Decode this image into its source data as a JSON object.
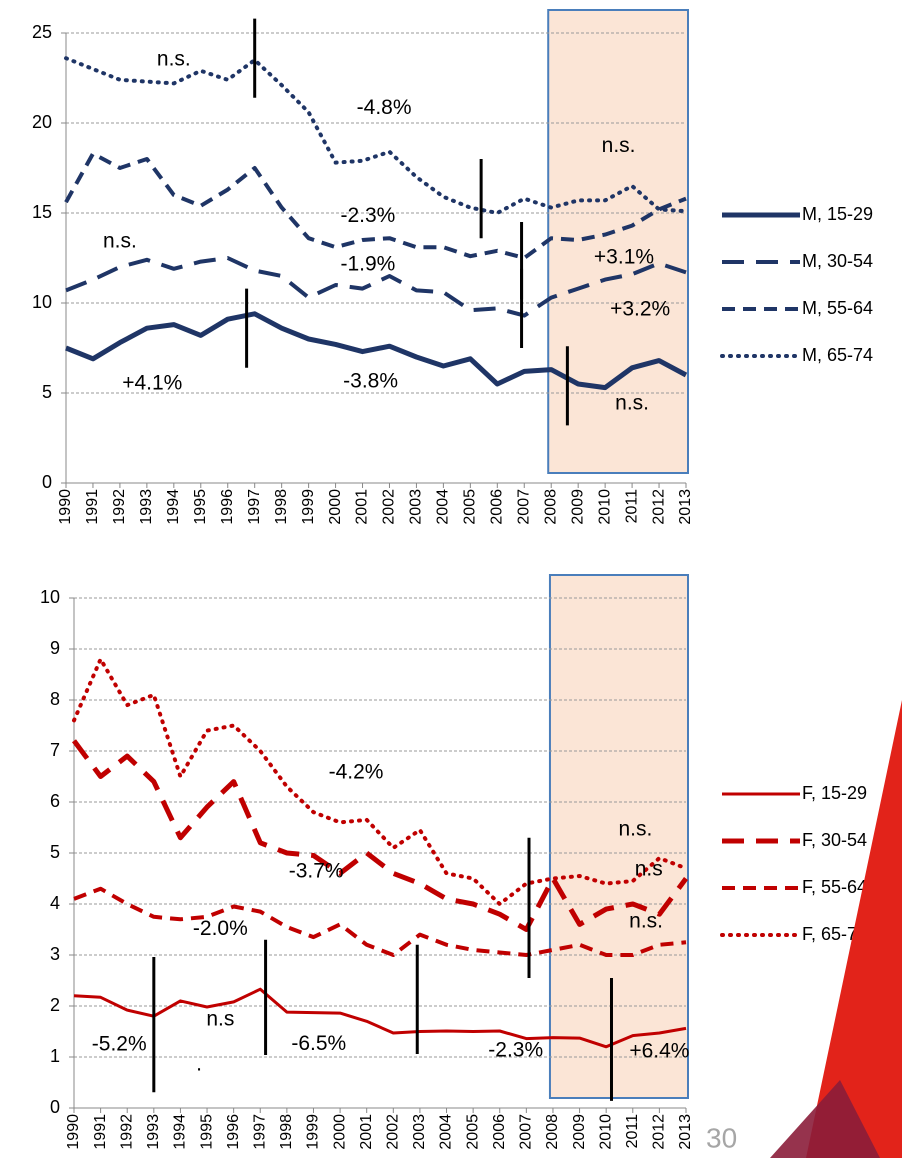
{
  "chart_data": [
    {
      "type": "line",
      "x": [
        1990,
        1991,
        1992,
        1993,
        1994,
        1995,
        1996,
        1997,
        1998,
        1999,
        2000,
        2001,
        2002,
        2003,
        2004,
        2005,
        2006,
        2007,
        2008,
        2009,
        2010,
        2011,
        2012,
        2013
      ],
      "xlim": [
        1990,
        2013
      ],
      "ylim": [
        0,
        25
      ],
      "yticks": [
        0,
        5,
        10,
        15,
        20,
        25
      ],
      "grid": true,
      "highlight": [
        2008,
        2013
      ],
      "series": [
        {
          "name": "M, 15-29",
          "color": "#1f3566",
          "dash": "solid",
          "width": 5,
          "values": [
            7.5,
            6.9,
            7.8,
            8.6,
            8.8,
            8.2,
            9.1,
            9.4,
            8.6,
            8.0,
            7.7,
            7.3,
            7.6,
            7.0,
            6.5,
            6.9,
            5.5,
            6.2,
            6.3,
            5.5,
            5.3,
            6.4,
            6.8,
            6.0
          ]
        },
        {
          "name": "M, 30-54",
          "color": "#1f3566",
          "dash": "long-dash",
          "width": 4,
          "values": [
            10.7,
            11.3,
            12.0,
            12.4,
            11.9,
            12.3,
            12.5,
            11.8,
            11.5,
            10.3,
            11.0,
            10.8,
            11.5,
            10.7,
            10.6,
            9.6,
            9.7,
            9.3,
            10.3,
            10.8,
            11.3,
            11.6,
            12.2,
            11.7
          ]
        },
        {
          "name": "M, 55-64",
          "color": "#1f3566",
          "dash": "dash",
          "width": 4,
          "values": [
            15.6,
            18.3,
            17.5,
            18.0,
            16.0,
            15.4,
            16.3,
            17.5,
            15.3,
            13.6,
            13.1,
            13.5,
            13.6,
            13.1,
            13.1,
            12.6,
            12.9,
            12.5,
            13.6,
            13.5,
            13.8,
            14.3,
            15.2,
            15.8
          ]
        },
        {
          "name": "M, 65-74",
          "color": "#1f3566",
          "dash": "dot",
          "width": 4,
          "values": [
            23.6,
            23.0,
            22.4,
            22.3,
            22.2,
            22.9,
            22.4,
            23.5,
            22.1,
            20.6,
            17.8,
            17.9,
            18.4,
            17.0,
            15.9,
            15.3,
            15.0,
            15.8,
            15.3,
            15.7,
            15.7,
            16.5,
            15.2,
            15.1
          ]
        }
      ],
      "breakpoints": [
        {
          "x": 1997.0,
          "y": [
            25.8,
            21.4
          ]
        },
        {
          "x": 2005.4,
          "y": [
            18.0,
            13.6
          ]
        },
        {
          "x": 2006.9,
          "y": [
            14.5,
            10.2
          ]
        },
        {
          "x": 2006.9,
          "y": [
            11.9,
            7.5
          ]
        },
        {
          "x": 1996.7,
          "y": [
            10.8,
            6.4
          ]
        },
        {
          "x": 2008.6,
          "y": [
            7.6,
            3.2
          ]
        }
      ],
      "annotations": [
        {
          "text": "n.s.",
          "x": 1994.0,
          "y": 23.5
        },
        {
          "text": "-4.8%",
          "x": 2001.8,
          "y": 20.8
        },
        {
          "text": "n.s.",
          "x": 2010.5,
          "y": 18.7
        },
        {
          "text": "-2.3%",
          "x": 2001.2,
          "y": 14.8
        },
        {
          "text": "n.s.",
          "x": 1992.0,
          "y": 13.4
        },
        {
          "text": "+3.1%",
          "x": 2010.7,
          "y": 12.5
        },
        {
          "text": "-1.9%",
          "x": 2001.2,
          "y": 12.1
        },
        {
          "text": "+3.2%",
          "x": 2011.3,
          "y": 9.6
        },
        {
          "text": "+4.1%",
          "x": 1993.2,
          "y": 5.5
        },
        {
          "text": "-3.8%",
          "x": 2001.3,
          "y": 5.6
        },
        {
          "text": "n.s.",
          "x": 2011.0,
          "y": 4.4
        }
      ]
    },
    {
      "type": "line",
      "x": [
        1990,
        1991,
        1992,
        1993,
        1994,
        1995,
        1996,
        1997,
        1998,
        1999,
        2000,
        2001,
        2002,
        2003,
        2004,
        2005,
        2006,
        2007,
        2008,
        2009,
        2010,
        2011,
        2012,
        2013
      ],
      "xlim": [
        1990,
        2013
      ],
      "ylim": [
        0,
        10
      ],
      "yticks": [
        0,
        1,
        2,
        3,
        4,
        5,
        6,
        7,
        8,
        9,
        10
      ],
      "grid": true,
      "highlight": [
        2008,
        2013
      ],
      "series": [
        {
          "name": "F, 15-29",
          "color": "#c00000",
          "dash": "solid",
          "width": 3,
          "values": [
            2.2,
            2.17,
            1.92,
            1.8,
            2.1,
            1.98,
            2.08,
            2.33,
            1.88,
            1.87,
            1.86,
            1.7,
            1.47,
            1.5,
            1.51,
            1.5,
            1.51,
            1.36,
            1.38,
            1.37,
            1.2,
            1.42,
            1.47,
            1.56
          ]
        },
        {
          "name": "F, 30-54",
          "color": "#c00000",
          "dash": "long-dash",
          "width": 5,
          "values": [
            7.2,
            6.5,
            6.9,
            6.4,
            5.3,
            5.9,
            6.4,
            5.2,
            5.0,
            4.95,
            4.6,
            5.0,
            4.6,
            4.4,
            4.1,
            4.0,
            3.8,
            3.5,
            4.5,
            3.6,
            3.9,
            4.0,
            3.8,
            4.5
          ]
        },
        {
          "name": "F, 55-64",
          "color": "#c00000",
          "dash": "dash",
          "width": 4,
          "values": [
            4.1,
            4.3,
            4.0,
            3.75,
            3.7,
            3.75,
            3.95,
            3.85,
            3.55,
            3.35,
            3.6,
            3.2,
            3.0,
            3.4,
            3.2,
            3.1,
            3.05,
            3.0,
            3.1,
            3.2,
            3.0,
            3.0,
            3.2,
            3.25
          ]
        },
        {
          "name": "F, 65-74",
          "color": "#c00000",
          "dash": "dot",
          "width": 4,
          "values": [
            7.6,
            8.8,
            7.9,
            8.1,
            6.5,
            7.4,
            7.5,
            7.0,
            6.3,
            5.8,
            5.6,
            5.65,
            5.1,
            5.45,
            4.6,
            4.5,
            4.0,
            4.4,
            4.5,
            4.55,
            4.4,
            4.45,
            4.9,
            4.7
          ]
        }
      ],
      "breakpoints": [
        {
          "x": 1993.0,
          "y": [
            2.96,
            0.31
          ]
        },
        {
          "x": 1997.2,
          "y": [
            3.3,
            1.04
          ]
        },
        {
          "x": 2002.9,
          "y": [
            3.2,
            1.06
          ]
        },
        {
          "x": 2007.1,
          "y": [
            5.3,
            2.55
          ]
        },
        {
          "x": 2010.2,
          "y": [
            2.55,
            0.14
          ]
        }
      ],
      "annotations": [
        {
          "text": "-4.2%",
          "x": 2000.6,
          "y": 6.57
        },
        {
          "text": "n.s.",
          "x": 2011.1,
          "y": 5.45
        },
        {
          "text": "-3.7%",
          "x": 1999.1,
          "y": 4.63
        },
        {
          "text": "n.s",
          "x": 2011.6,
          "y": 4.67
        },
        {
          "text": "n.s.",
          "x": 2011.5,
          "y": 3.65
        },
        {
          "text": "-2.0%",
          "x": 1995.5,
          "y": 3.5
        },
        {
          "text": "-5.2%",
          "x": 1991.7,
          "y": 1.24
        },
        {
          "text": "n.s",
          "x": 1995.5,
          "y": 1.73
        },
        {
          "text": ".",
          "x": 1994.7,
          "y": 0.84
        },
        {
          "text": "-6.5%",
          "x": 1999.2,
          "y": 1.25
        },
        {
          "text": "-2.3%",
          "x": 2006.6,
          "y": 1.12
        },
        {
          "text": "+6.4%",
          "x": 2012.0,
          "y": 1.1
        }
      ]
    }
  ],
  "page_number": "30"
}
